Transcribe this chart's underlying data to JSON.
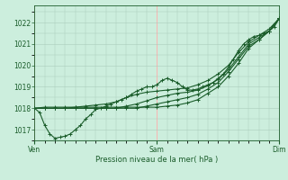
{
  "title": "Pression niveau de la mer( hPa )",
  "bg_color": "#cceedd",
  "grid_color_h": "#aaccbb",
  "grid_color_v": "#ffaaaa",
  "line_color": "#1a5c2a",
  "ylim": [
    1016.5,
    1022.8
  ],
  "yticks": [
    1017,
    1018,
    1019,
    1020,
    1021,
    1022
  ],
  "xtick_positions": [
    0,
    48,
    96
  ],
  "xtick_labels": [
    "Ven",
    "Sam",
    "Dim"
  ],
  "x_total": 96,
  "series": [
    {
      "x": [
        0,
        2,
        4,
        6,
        8,
        10,
        12,
        14,
        16,
        18,
        20,
        22,
        24,
        26,
        28,
        30,
        32,
        34,
        36,
        38,
        40,
        42,
        44,
        46,
        48,
        50,
        52,
        54,
        56,
        58,
        60,
        62,
        64,
        66,
        68,
        70,
        72,
        74,
        76,
        78,
        80,
        82,
        84,
        86,
        88,
        90,
        92,
        94,
        96
      ],
      "y": [
        1018.0,
        1017.8,
        1017.2,
        1016.8,
        1016.6,
        1016.65,
        1016.7,
        1016.8,
        1017.0,
        1017.2,
        1017.5,
        1017.7,
        1017.95,
        1018.0,
        1018.1,
        1018.2,
        1018.3,
        1018.4,
        1018.5,
        1018.65,
        1018.8,
        1018.9,
        1019.0,
        1019.0,
        1019.1,
        1019.3,
        1019.4,
        1019.3,
        1019.2,
        1019.0,
        1018.85,
        1018.85,
        1018.9,
        1019.0,
        1019.1,
        1019.2,
        1019.4,
        1019.6,
        1019.9,
        1020.3,
        1020.7,
        1021.0,
        1021.2,
        1021.35,
        1021.4,
        1021.5,
        1021.6,
        1021.8,
        1022.2
      ]
    },
    {
      "x": [
        0,
        4,
        8,
        12,
        16,
        20,
        24,
        28,
        32,
        36,
        40,
        44,
        48,
        52,
        56,
        60,
        64,
        68,
        72,
        76,
        80,
        84,
        88,
        92,
        96
      ],
      "y": [
        1018.0,
        1018.0,
        1018.0,
        1018.0,
        1018.05,
        1018.1,
        1018.15,
        1018.2,
        1018.3,
        1018.5,
        1018.65,
        1018.75,
        1018.8,
        1018.85,
        1018.9,
        1018.95,
        1019.1,
        1019.3,
        1019.6,
        1020.0,
        1020.6,
        1021.1,
        1021.4,
        1021.7,
        1022.2
      ]
    },
    {
      "x": [
        0,
        4,
        8,
        12,
        16,
        20,
        24,
        28,
        32,
        36,
        40,
        44,
        48,
        52,
        56,
        60,
        64,
        68,
        72,
        76,
        80,
        84,
        88,
        92,
        96
      ],
      "y": [
        1018.0,
        1018.0,
        1018.0,
        1018.0,
        1018.0,
        1018.0,
        1018.0,
        1018.0,
        1018.0,
        1018.1,
        1018.2,
        1018.35,
        1018.5,
        1018.6,
        1018.7,
        1018.75,
        1018.85,
        1019.05,
        1019.35,
        1019.8,
        1020.4,
        1021.0,
        1021.3,
        1021.6,
        1022.2
      ]
    },
    {
      "x": [
        0,
        4,
        8,
        12,
        16,
        20,
        24,
        28,
        32,
        36,
        40,
        44,
        48,
        52,
        56,
        60,
        64,
        68,
        72,
        76,
        80,
        84,
        88,
        92,
        96
      ],
      "y": [
        1018.0,
        1018.0,
        1018.0,
        1018.0,
        1018.0,
        1018.0,
        1018.0,
        1018.0,
        1018.0,
        1018.0,
        1018.0,
        1018.1,
        1018.2,
        1018.3,
        1018.4,
        1018.5,
        1018.65,
        1018.9,
        1019.2,
        1019.7,
        1020.3,
        1020.9,
        1021.2,
        1021.6,
        1022.2
      ]
    },
    {
      "x": [
        0,
        4,
        8,
        12,
        16,
        20,
        24,
        28,
        32,
        36,
        40,
        44,
        48,
        52,
        56,
        60,
        64,
        68,
        72,
        76,
        80,
        84,
        88,
        92,
        96
      ],
      "y": [
        1018.0,
        1018.05,
        1018.05,
        1018.05,
        1018.05,
        1018.05,
        1018.05,
        1018.05,
        1018.05,
        1018.05,
        1018.05,
        1018.05,
        1018.05,
        1018.1,
        1018.15,
        1018.25,
        1018.4,
        1018.7,
        1019.0,
        1019.5,
        1020.1,
        1020.8,
        1021.2,
        1021.6,
        1022.2
      ]
    }
  ]
}
